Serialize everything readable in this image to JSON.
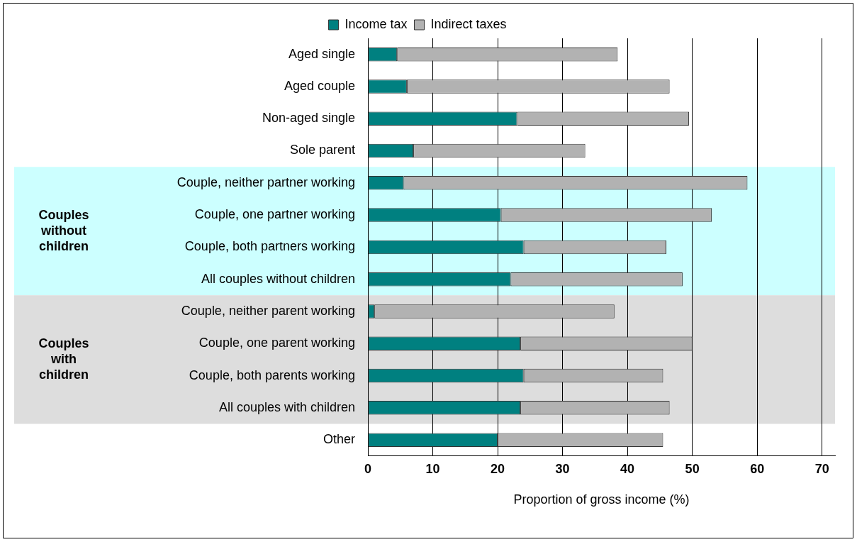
{
  "chart_data": {
    "type": "bar",
    "orientation": "horizontal",
    "stacked": true,
    "categories": [
      "Aged single",
      "Aged couple",
      "Non-aged single",
      "Sole parent",
      "Couple, neither partner working",
      "Couple, one partner working",
      "Couple, both partners working",
      "All couples without children",
      "Couple, neither parent working",
      "Couple, one parent working",
      "Couple, both parents working",
      "All couples with children",
      "Other"
    ],
    "series": [
      {
        "name": "Income tax",
        "color": "#008080",
        "values": [
          4.5,
          6,
          23,
          7,
          5.5,
          20.5,
          24,
          22,
          1,
          23.5,
          24,
          23.5,
          20
        ]
      },
      {
        "name": "Indirect taxes",
        "color": "#b2b2b2",
        "values": [
          34,
          40.5,
          26.5,
          26.5,
          53,
          32.5,
          22,
          26.5,
          37,
          26.5,
          21.5,
          23,
          25.5
        ]
      }
    ],
    "xlabel": "Proportion of gross income (%)",
    "xlim": [
      0,
      72
    ],
    "xticks": [
      0,
      10,
      20,
      30,
      40,
      50,
      60,
      70
    ],
    "grid": "x",
    "legend": "top",
    "bands": [
      {
        "axis": "y",
        "from": "Couple, neither partner working",
        "to": "All couples without children",
        "label": "Couples without children",
        "color": "#ccffff"
      },
      {
        "axis": "y",
        "from": "Couple, neither parent working",
        "to": "All couples with children",
        "label": "Couples with children",
        "color": "#dddddd"
      }
    ]
  }
}
